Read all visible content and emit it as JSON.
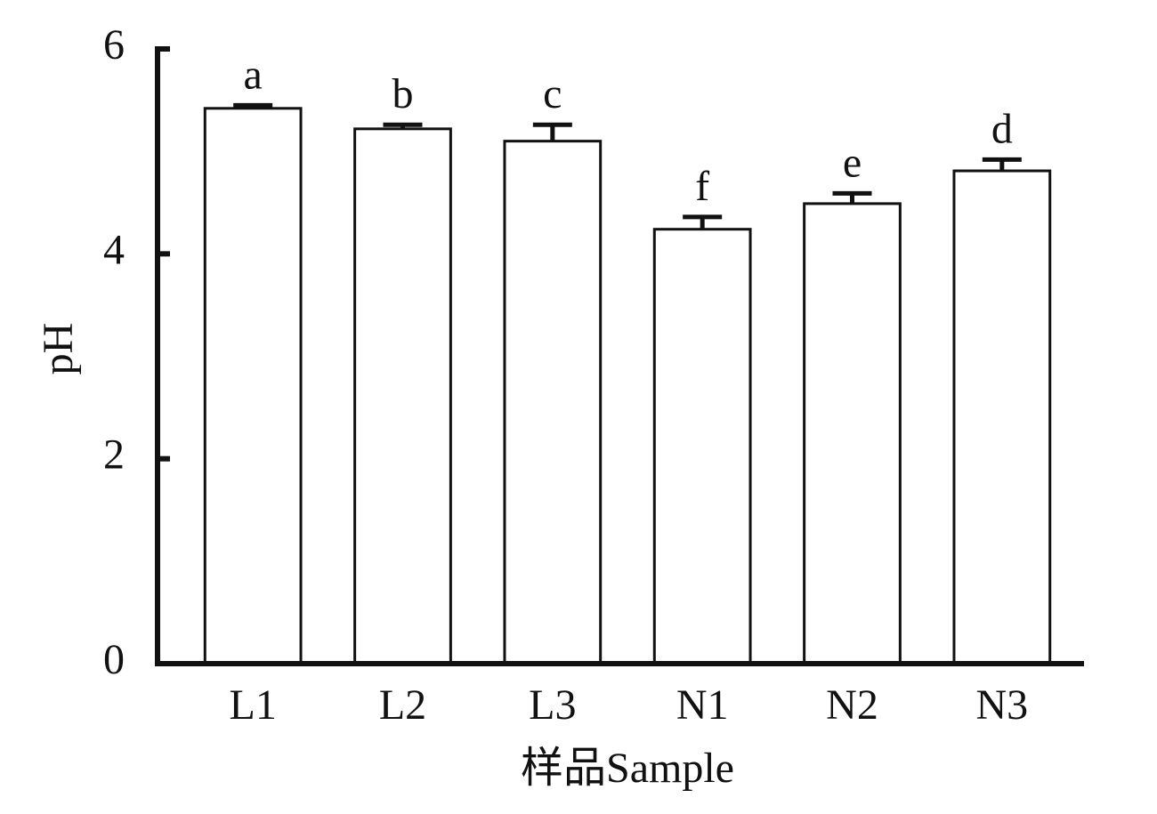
{
  "chart_data": {
    "type": "bar",
    "xlabel": "样品Sample",
    "ylabel": "pH",
    "categories": [
      "L1",
      "L2",
      "L3",
      "N1",
      "N2",
      "N3"
    ],
    "values": [
      5.42,
      5.22,
      5.1,
      4.24,
      4.49,
      4.81
    ],
    "errors": [
      0.03,
      0.04,
      0.16,
      0.12,
      0.1,
      0.11
    ],
    "annotations": [
      "a",
      "b",
      "c",
      "f",
      "e",
      "d"
    ],
    "color": "#ffffff",
    "ylim": [
      0,
      6
    ],
    "yticks": [
      0,
      2,
      4,
      6
    ],
    "grid": false
  }
}
